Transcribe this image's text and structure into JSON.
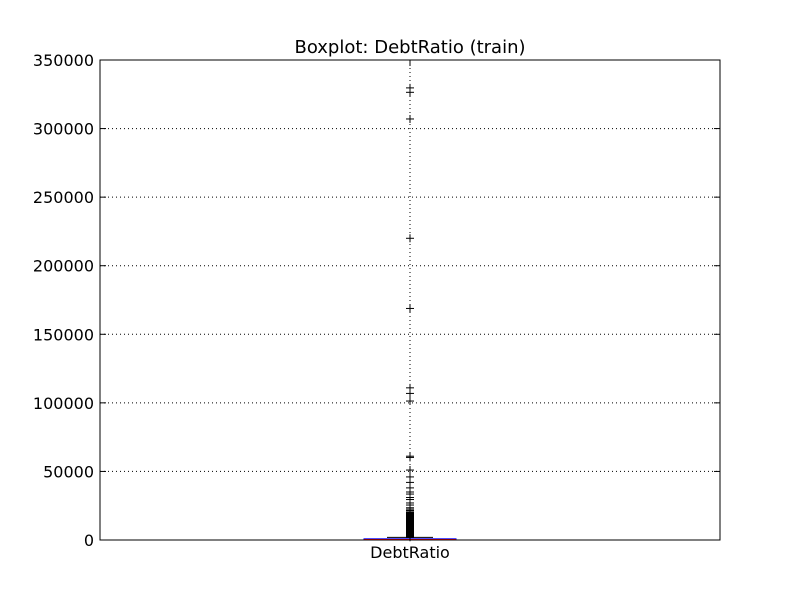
{
  "chart_data": {
    "type": "box",
    "title": "Boxplot: DebtRatio (train)",
    "xlabel": "",
    "ylabel": "",
    "categories": [
      "DebtRatio"
    ],
    "ylim": [
      0,
      350000
    ],
    "y_ticks": [
      0,
      50000,
      100000,
      150000,
      200000,
      250000,
      300000,
      350000
    ],
    "y_tick_labels": [
      "0",
      "50000",
      "100000",
      "150000",
      "200000",
      "250000",
      "300000",
      "350000"
    ],
    "grid": true,
    "box": {
      "q1": 175,
      "median": 370,
      "q3": 870,
      "whisker_low": 0,
      "whisker_high": 1900
    },
    "outliers": [
      329664,
      326442,
      307001,
      220000,
      168835,
      110952,
      106885,
      101320,
      61106,
      60212,
      51000,
      46000,
      42000,
      38000,
      35000,
      33500,
      31000,
      29500,
      27000,
      25500,
      23500,
      22500,
      21500,
      20500,
      19500,
      18500,
      17500,
      16500,
      15500,
      14500,
      13500,
      12500,
      11500,
      10500,
      9500,
      8500,
      7500,
      6500,
      5500,
      4500,
      3500,
      2800,
      2300,
      2000
    ],
    "colors": {
      "box": "#0000ff",
      "median": "#ff0000",
      "outlier": "#000000",
      "grid": "#000000"
    }
  }
}
